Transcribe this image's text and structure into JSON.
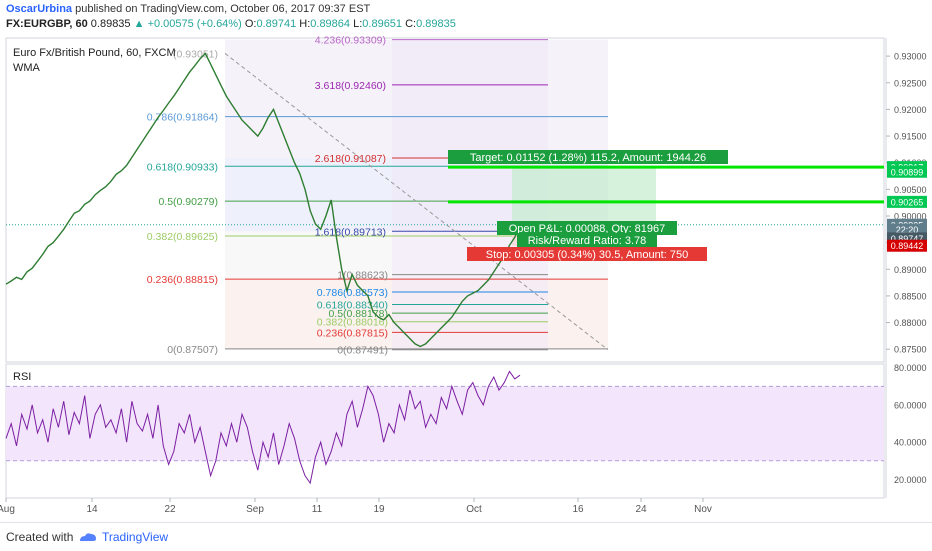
{
  "header": {
    "author": "OscarUrbina",
    "published_text": "published on TradingView.com, October 06, 2017 09:37 EST",
    "symbol": "FX:EURGBP, 60",
    "last": "0.89835",
    "change": "+0.00575 (+0.64%)",
    "o_label": "O:",
    "o_value": "0.89741",
    "h_label": "H:",
    "h_value": "0.89864",
    "l_label": "L:",
    "l_value": "0.89651",
    "c_label": "C:",
    "c_value": "0.89835"
  },
  "chart_data": {
    "type": "line",
    "title": "Euro Fx/British Pound, 60, FXCM",
    "indicator": "WMA",
    "price_axis": {
      "range": [
        0.8726,
        0.9334
      ],
      "ticks": [
        "0.93000",
        "0.92500",
        "0.92000",
        "0.91500",
        "0.91000",
        "0.90500",
        "0.90000",
        "0.89500",
        "0.89000",
        "0.88500",
        "0.88000",
        "0.87500"
      ]
    },
    "price_tags": [
      {
        "label": "0.90917",
        "value": 0.90917,
        "color": "#00c853"
      },
      {
        "label": "0.90899",
        "value": 0.9083,
        "color": "#00c853"
      },
      {
        "label": "0.90265",
        "value": 0.90265,
        "color": "#00c853"
      },
      {
        "label": "0.89835",
        "value": 0.89835,
        "color": "#607d8b"
      },
      {
        "label": "22:20",
        "value": 0.89742,
        "color": "#607d8b"
      },
      {
        "label": "0.89747",
        "value": 0.8958,
        "color": "#455a64"
      },
      {
        "label": "0.89442",
        "value": 0.89442,
        "color": "#d50000"
      }
    ],
    "x_axis": {
      "ticks": [
        "Aug",
        "14",
        "22",
        "Sep",
        "11",
        "19",
        "Oct",
        "16",
        "24",
        "Nov"
      ]
    },
    "price_series": [
      0.8872,
      0.8878,
      0.8885,
      0.8881,
      0.8895,
      0.8902,
      0.8915,
      0.8928,
      0.8943,
      0.895,
      0.8962,
      0.8975,
      0.899,
      0.9005,
      0.901,
      0.9022,
      0.9028,
      0.904,
      0.9048,
      0.9055,
      0.9065,
      0.9078,
      0.9085,
      0.9095,
      0.911,
      0.9125,
      0.914,
      0.9155,
      0.917,
      0.9185,
      0.9198,
      0.9212,
      0.9225,
      0.924,
      0.9255,
      0.927,
      0.9282,
      0.9295,
      0.9305,
      0.9285,
      0.9265,
      0.9245,
      0.9225,
      0.921,
      0.9195,
      0.918,
      0.917,
      0.916,
      0.915,
      0.9165,
      0.9185,
      0.92,
      0.9175,
      0.915,
      0.9125,
      0.91,
      0.908,
      0.905,
      0.901,
      0.8985,
      0.8975,
      0.9,
      0.903,
      0.896,
      0.89,
      0.886,
      0.889,
      0.887,
      0.886,
      0.885,
      0.882,
      0.881,
      0.8805,
      0.8815,
      0.88,
      0.879,
      0.878,
      0.877,
      0.876,
      0.8755,
      0.876,
      0.877,
      0.878,
      0.879,
      0.88,
      0.881,
      0.8825,
      0.884,
      0.885,
      0.8855,
      0.886,
      0.887,
      0.888,
      0.8895,
      0.891,
      0.8925,
      0.8945,
      0.896,
      0.8983
    ],
    "fib_left": [
      {
        "label": "0.786(0.91864)",
        "value": 0.91864,
        "color": "#5b9bd5"
      },
      {
        "label": "0.618(0.90933)",
        "value": 0.90933,
        "color": "#26a69a"
      },
      {
        "label": "0.5(0.90279)",
        "value": 0.90279,
        "color": "#43a047"
      },
      {
        "label": "0.382(0.89625)",
        "value": 0.89625,
        "color": "#9ccc65"
      },
      {
        "label": "0.236(0.88815)",
        "value": 0.88815,
        "color": "#e53935"
      },
      {
        "label": "0(0.87507)",
        "value": 0.87507,
        "color": "#888888"
      }
    ],
    "fib_left_top_label": "(0.93051)",
    "fib_ext": [
      {
        "label": "4.236(0.93309)",
        "value": 0.93309,
        "color": "#ba68c8"
      },
      {
        "label": "3.618(0.92460)",
        "value": 0.9246,
        "color": "#9c27b0"
      },
      {
        "label": "2.618(0.91087)",
        "value": 0.91087,
        "color": "#d32f2f"
      },
      {
        "label": "1.618(0.89713)",
        "value": 0.89713,
        "color": "#3949ab"
      }
    ],
    "fib_retr": [
      {
        "label": "1(0.88623)",
        "value": 0.889,
        "color": "#888888"
      },
      {
        "label": "0.786(0.88573)",
        "value": 0.88573,
        "color": "#1e88e5"
      },
      {
        "label": "0.618(0.88340)",
        "value": 0.8834,
        "color": "#26a69a"
      },
      {
        "label": "0.5(0.88178)",
        "value": 0.88178,
        "color": "#43a047"
      },
      {
        "label": "0.382(0.88016)",
        "value": 0.88016,
        "color": "#9ccc65"
      },
      {
        "label": "0.236(0.87815)",
        "value": 0.87815,
        "color": "#e53935"
      },
      {
        "label": "0(0.87491)",
        "value": 0.87491,
        "color": "#888888"
      }
    ],
    "position": {
      "target_label": "Target: 0.01152 (1.28%) 115.2, Amount: 1944.26",
      "pnl_label": "Open P&L: 0.00088, Qty: 81967",
      "rr_label": "Risk/Reward Ratio: 3.78",
      "stop_label": "Stop: 0.00305 (0.34%) 30.5, Amount: 750",
      "entry": 0.89747,
      "target": 0.90899,
      "stop": 0.89442
    },
    "rsi": {
      "label": "RSI",
      "range": [
        10,
        82
      ],
      "ticks": [
        "80.0000",
        "60.0000",
        "40.0000",
        "20.0000"
      ],
      "upper_band": 70,
      "lower_band": 30,
      "series": [
        42,
        50,
        38,
        55,
        47,
        60,
        45,
        52,
        40,
        58,
        48,
        62,
        44,
        56,
        50,
        65,
        42,
        55,
        60,
        48,
        52,
        45,
        58,
        40,
        62,
        50,
        46,
        55,
        42,
        60,
        38,
        28,
        35,
        50,
        45,
        55,
        40,
        48,
        35,
        22,
        30,
        45,
        38,
        50,
        40,
        55,
        48,
        35,
        25,
        40,
        32,
        45,
        28,
        38,
        50,
        42,
        30,
        22,
        18,
        32,
        40,
        28,
        35,
        45,
        38,
        55,
        62,
        48,
        58,
        70,
        65,
        55,
        40,
        50,
        45,
        60,
        52,
        68,
        58,
        62,
        48,
        55,
        50,
        64,
        58,
        70,
        62,
        55,
        68,
        72,
        65,
        60,
        70,
        75,
        68,
        72,
        78,
        74,
        76
      ]
    }
  },
  "footer": {
    "created_with": "Created with",
    "brand": "TradingView"
  }
}
